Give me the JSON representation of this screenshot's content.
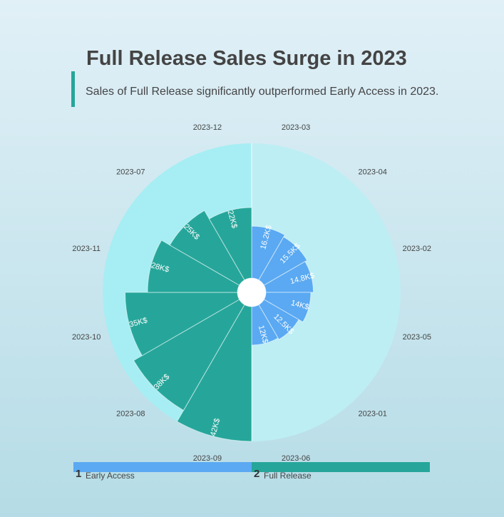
{
  "title": "Full Release Sales Surge in 2023",
  "subtitle": "Sales of Full Release significantly outperformed Early Access in 2023.",
  "colors": {
    "early_access": "#5aa9f2",
    "full_release": "#26a69a",
    "accent": "#26a69a"
  },
  "legend": [
    {
      "num": "1",
      "label": "Early Access"
    },
    {
      "num": "2",
      "label": "Full Release"
    }
  ],
  "chart_data": {
    "type": "nightingale-rose",
    "value_suffix": "K$",
    "angular_labels": [
      "2023-03",
      "2023-04",
      "2023-02",
      "2023-05",
      "2023-01",
      "2023-06",
      "2023-09",
      "2023-08",
      "2023-10",
      "2023-11",
      "2023-07",
      "2023-12"
    ],
    "series": [
      {
        "name": "Early Access",
        "categories": [
          "2023-03",
          "2023-04",
          "2023-02",
          "2023-05",
          "2023-01",
          "2023-06"
        ],
        "values": [
          16.2,
          15.5,
          14.8,
          14,
          12.5,
          12
        ],
        "labels": [
          "16.2K$",
          "15.5K$",
          "14.8K$",
          "14K$",
          "12.5K$",
          "12K$"
        ]
      },
      {
        "name": "Full Release",
        "categories": [
          "2023-09",
          "2023-08",
          "2023-10",
          "2023-11",
          "2023-07",
          "2023-12"
        ],
        "values": [
          42,
          38,
          35,
          28,
          25,
          22
        ],
        "labels": [
          "42K$",
          "38K$",
          "35K$",
          "28K$",
          "25K$",
          "22K$"
        ]
      }
    ]
  }
}
